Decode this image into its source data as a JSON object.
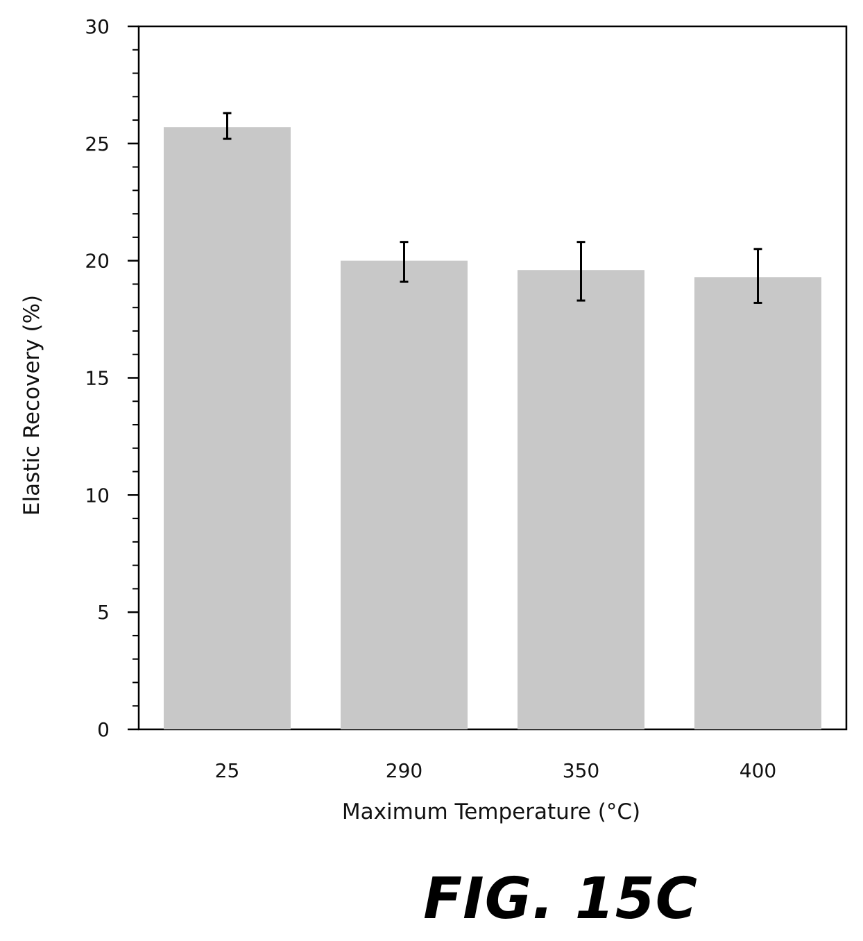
{
  "chart_data": {
    "type": "bar",
    "categories": [
      "25",
      "290",
      "350",
      "400"
    ],
    "values": [
      25.7,
      20.0,
      19.6,
      19.3
    ],
    "error_low": [
      25.2,
      19.1,
      18.3,
      18.2
    ],
    "error_high": [
      26.3,
      20.8,
      20.8,
      20.5
    ],
    "xlabel": "Maximum Temperature (°C)",
    "ylabel": "Elastic Recovery (%)",
    "ylim": [
      0,
      30
    ],
    "yticks": [
      "0",
      "5",
      "10",
      "15",
      "20",
      "25",
      "30"
    ],
    "grid": false,
    "bar_color": "#c8c8c8"
  },
  "figure_label": "FIG. 15C"
}
